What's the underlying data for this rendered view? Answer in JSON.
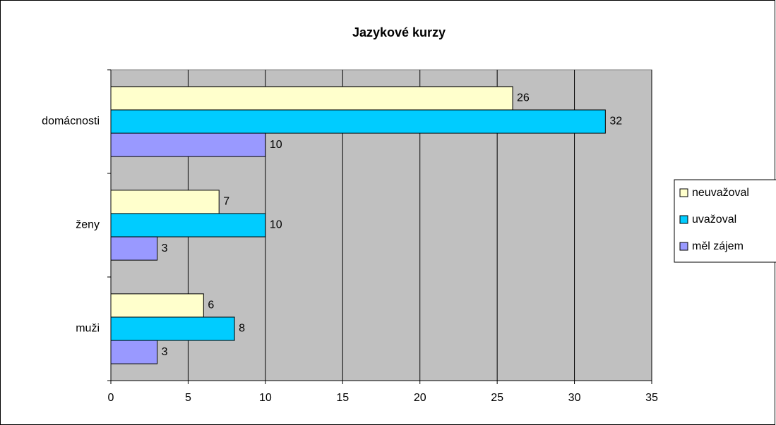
{
  "chart_data": {
    "type": "hbar",
    "title": "Jazykové kurzy",
    "categories": [
      "domácnosti",
      "ženy",
      "muži"
    ],
    "series": [
      {
        "name": "neuvažoval",
        "color": "#ffffcc",
        "values": [
          26,
          7,
          6
        ]
      },
      {
        "name": "uvažoval",
        "color": "#00ccff",
        "values": [
          32,
          10,
          8
        ]
      },
      {
        "name": "měl zájem",
        "color": "#9999ff",
        "values": [
          10,
          3,
          3
        ]
      }
    ],
    "xlim": [
      0,
      35
    ],
    "xticks": [
      0,
      5,
      10,
      15,
      20,
      25,
      30,
      35
    ],
    "grid": true,
    "legend": "right"
  }
}
